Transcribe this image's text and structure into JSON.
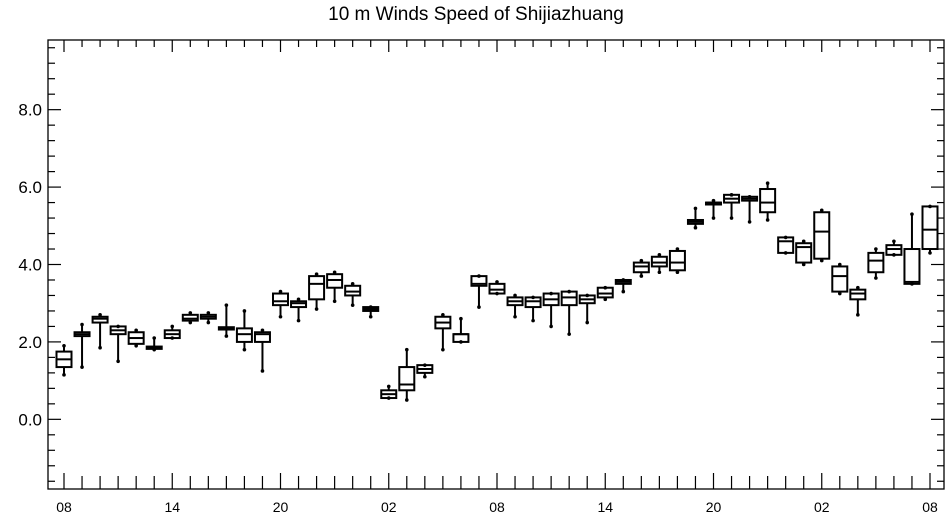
{
  "chart_data": {
    "type": "box",
    "title": "10 m Winds Speed of Shijiazhuang",
    "xlabel": "",
    "ylabel": "",
    "ylim": [
      -1.8,
      9.8
    ],
    "yticks": [
      {
        "value": 0.0,
        "label": "0.0"
      },
      {
        "value": 2.0,
        "label": "2.0"
      },
      {
        "value": 4.0,
        "label": "4.0"
      },
      {
        "value": 6.0,
        "label": "6.0"
      },
      {
        "value": 8.0,
        "label": "8.0"
      }
    ],
    "x_count": 49,
    "xtick_labels": [
      {
        "index": 0,
        "label": "08"
      },
      {
        "index": 6,
        "label": "14"
      },
      {
        "index": 12,
        "label": "20"
      },
      {
        "index": 18,
        "label": "02"
      },
      {
        "index": 24,
        "label": "08"
      },
      {
        "index": 30,
        "label": "14"
      },
      {
        "index": 36,
        "label": "20"
      },
      {
        "index": 42,
        "label": "02"
      },
      {
        "index": 48,
        "label": "08"
      }
    ],
    "grid": false,
    "legend": "none",
    "boxes": [
      {
        "x": 0,
        "min": 1.15,
        "q1": 1.35,
        "median": 1.55,
        "q3": 1.75,
        "max": 1.9
      },
      {
        "x": 1,
        "min": 1.35,
        "q1": 2.15,
        "median": 2.2,
        "q3": 2.25,
        "max": 2.45
      },
      {
        "x": 2,
        "min": 1.85,
        "q1": 2.5,
        "median": 2.6,
        "q3": 2.65,
        "max": 2.7
      },
      {
        "x": 3,
        "min": 1.5,
        "q1": 2.2,
        "median": 2.3,
        "q3": 2.4,
        "max": 2.4
      },
      {
        "x": 4,
        "min": 1.9,
        "q1": 1.95,
        "median": 2.1,
        "q3": 2.25,
        "max": 2.3
      },
      {
        "x": 5,
        "min": 1.8,
        "q1": 1.82,
        "median": 1.85,
        "q3": 1.88,
        "max": 2.1
      },
      {
        "x": 6,
        "min": 2.1,
        "q1": 2.1,
        "median": 2.2,
        "q3": 2.3,
        "max": 2.4
      },
      {
        "x": 7,
        "min": 2.5,
        "q1": 2.55,
        "median": 2.6,
        "q3": 2.7,
        "max": 2.75
      },
      {
        "x": 8,
        "min": 2.5,
        "q1": 2.6,
        "median": 2.65,
        "q3": 2.7,
        "max": 2.75
      },
      {
        "x": 9,
        "min": 2.15,
        "q1": 2.32,
        "median": 2.35,
        "q3": 2.38,
        "max": 2.95
      },
      {
        "x": 10,
        "min": 1.8,
        "q1": 2.0,
        "median": 2.2,
        "q3": 2.35,
        "max": 2.8
      },
      {
        "x": 11,
        "min": 1.25,
        "q1": 2.0,
        "median": 2.2,
        "q3": 2.25,
        "max": 2.3
      },
      {
        "x": 12,
        "min": 2.65,
        "q1": 2.95,
        "median": 3.05,
        "q3": 3.25,
        "max": 3.3
      },
      {
        "x": 13,
        "min": 2.55,
        "q1": 2.9,
        "median": 3.0,
        "q3": 3.05,
        "max": 3.1
      },
      {
        "x": 14,
        "min": 2.85,
        "q1": 3.1,
        "median": 3.5,
        "q3": 3.7,
        "max": 3.75
      },
      {
        "x": 15,
        "min": 3.05,
        "q1": 3.4,
        "median": 3.6,
        "q3": 3.75,
        "max": 3.8
      },
      {
        "x": 16,
        "min": 2.95,
        "q1": 3.2,
        "median": 3.3,
        "q3": 3.45,
        "max": 3.5
      },
      {
        "x": 17,
        "min": 2.65,
        "q1": 2.8,
        "median": 2.85,
        "q3": 2.9,
        "max": 2.9
      },
      {
        "x": 18,
        "min": 0.55,
        "q1": 0.55,
        "median": 0.65,
        "q3": 0.75,
        "max": 0.85
      },
      {
        "x": 19,
        "min": 0.5,
        "q1": 0.75,
        "median": 0.9,
        "q3": 1.35,
        "max": 1.8
      },
      {
        "x": 20,
        "min": 1.1,
        "q1": 1.2,
        "median": 1.3,
        "q3": 1.4,
        "max": 1.4
      },
      {
        "x": 21,
        "min": 1.8,
        "q1": 2.35,
        "median": 2.5,
        "q3": 2.65,
        "max": 2.7
      },
      {
        "x": 22,
        "min": 2.0,
        "q1": 2.0,
        "median": 2.2,
        "q3": 2.2,
        "max": 2.6
      },
      {
        "x": 23,
        "min": 2.9,
        "q1": 3.45,
        "median": 3.5,
        "q3": 3.7,
        "max": 3.7
      },
      {
        "x": 24,
        "min": 3.25,
        "q1": 3.25,
        "median": 3.35,
        "q3": 3.5,
        "max": 3.55
      },
      {
        "x": 25,
        "min": 2.65,
        "q1": 2.95,
        "median": 3.05,
        "q3": 3.15,
        "max": 3.2
      },
      {
        "x": 26,
        "min": 2.55,
        "q1": 2.9,
        "median": 3.05,
        "q3": 3.15,
        "max": 3.15
      },
      {
        "x": 27,
        "min": 2.4,
        "q1": 2.95,
        "median": 3.1,
        "q3": 3.25,
        "max": 3.25
      },
      {
        "x": 28,
        "min": 2.2,
        "q1": 2.95,
        "median": 3.15,
        "q3": 3.3,
        "max": 3.3
      },
      {
        "x": 29,
        "min": 2.5,
        "q1": 3.0,
        "median": 3.1,
        "q3": 3.2,
        "max": 3.2
      },
      {
        "x": 30,
        "min": 3.1,
        "q1": 3.15,
        "median": 3.25,
        "q3": 3.4,
        "max": 3.4
      },
      {
        "x": 31,
        "min": 3.3,
        "q1": 3.5,
        "median": 3.55,
        "q3": 3.6,
        "max": 3.6
      },
      {
        "x": 32,
        "min": 3.7,
        "q1": 3.8,
        "median": 3.95,
        "q3": 4.05,
        "max": 4.1
      },
      {
        "x": 33,
        "min": 3.8,
        "q1": 3.95,
        "median": 4.05,
        "q3": 4.2,
        "max": 4.25
      },
      {
        "x": 34,
        "min": 3.8,
        "q1": 3.85,
        "median": 4.05,
        "q3": 4.35,
        "max": 4.4
      },
      {
        "x": 35,
        "min": 4.95,
        "q1": 5.05,
        "median": 5.1,
        "q3": 5.15,
        "max": 5.45
      },
      {
        "x": 36,
        "min": 5.2,
        "q1": 5.55,
        "median": 5.6,
        "q3": 5.6,
        "max": 5.65
      },
      {
        "x": 37,
        "min": 5.2,
        "q1": 5.6,
        "median": 5.7,
        "q3": 5.8,
        "max": 5.8
      },
      {
        "x": 38,
        "min": 5.1,
        "q1": 5.65,
        "median": 5.7,
        "q3": 5.75,
        "max": 5.75
      },
      {
        "x": 39,
        "min": 5.15,
        "q1": 5.35,
        "median": 5.6,
        "q3": 5.95,
        "max": 6.1
      },
      {
        "x": 40,
        "min": 4.3,
        "q1": 4.3,
        "median": 4.6,
        "q3": 4.7,
        "max": 4.7
      },
      {
        "x": 41,
        "min": 4.0,
        "q1": 4.05,
        "median": 4.45,
        "q3": 4.55,
        "max": 4.6
      },
      {
        "x": 42,
        "min": 4.1,
        "q1": 4.15,
        "median": 4.85,
        "q3": 5.35,
        "max": 5.4
      },
      {
        "x": 43,
        "min": 3.25,
        "q1": 3.3,
        "median": 3.7,
        "q3": 3.95,
        "max": 4.0
      },
      {
        "x": 44,
        "min": 2.7,
        "q1": 3.1,
        "median": 3.25,
        "q3": 3.35,
        "max": 3.4
      },
      {
        "x": 45,
        "min": 3.65,
        "q1": 3.8,
        "median": 4.1,
        "q3": 4.3,
        "max": 4.4
      },
      {
        "x": 46,
        "min": 4.25,
        "q1": 4.25,
        "median": 4.4,
        "q3": 4.5,
        "max": 4.6
      },
      {
        "x": 47,
        "min": 3.5,
        "q1": 3.5,
        "median": 3.55,
        "q3": 4.4,
        "max": 5.3
      },
      {
        "x": 48,
        "min": 4.3,
        "q1": 4.4,
        "median": 4.9,
        "q3": 5.5,
        "max": 5.5
      }
    ]
  }
}
